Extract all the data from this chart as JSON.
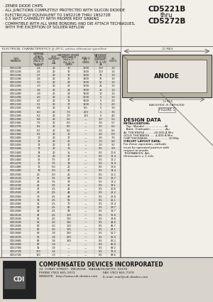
{
  "bg_color": "#f2efe9",
  "title_part1": "CD5221B",
  "title_thru": "thru",
  "title_part2": "CD5272B",
  "bullets": [
    "· ZENER DIODE CHIPS",
    "· ALL JUNCTIONS COMPLETELY PROTECTED WITH SILICON DIOXIDE",
    "· ELECTRICALLY EQUIVALENT TO 1N5221B THRU 1N5272B",
    "· 0.5 WATT CAPABILITY WITH PROPER HEAT SINKING",
    "· COMPATIBLE WITH ALL WIRE BONDING AND DIE ATTACH TECHNIQUES,",
    "  WITH THE EXCEPTION OF SOLDER REFLOW"
  ],
  "elec_char_title": "ELECTRICAL CHARACTERISTICS @ 25°C, unless otherwise specified",
  "table_rows": [
    [
      "CD5221B",
      "2.4",
      "20",
      "30",
      "1200",
      "100",
      "1.0"
    ],
    [
      "CD5222B",
      "2.5",
      "20",
      "30",
      "1200",
      "100",
      "1.0"
    ],
    [
      "CD5223B",
      "2.7",
      "20",
      "30",
      "1300",
      "75",
      "1.0"
    ],
    [
      "CD5224B",
      "2.8",
      "20",
      "30",
      "1400",
      "75",
      "1.0"
    ],
    [
      "CD5225B",
      "3.0",
      "20",
      "29",
      "1600",
      "50",
      "1.0"
    ],
    [
      "CD5226B",
      "3.3",
      "20",
      "28",
      "1600",
      "25",
      "1.0"
    ],
    [
      "CD5227B",
      "3.6",
      "20",
      "24",
      "1700",
      "15",
      "1.0"
    ],
    [
      "CD5228B",
      "3.9",
      "20",
      "23",
      "1900",
      "10",
      "1.0"
    ],
    [
      "CD5229B",
      "4.3",
      "20",
      "22",
      "2000",
      "5",
      "1.0"
    ],
    [
      "CD5230B",
      "4.7",
      "20",
      "19",
      "1900",
      "5",
      "2.0"
    ],
    [
      "CD5231B",
      "5.1",
      "20",
      "17",
      "1500",
      "5",
      "2.0"
    ],
    [
      "CD5232B",
      "5.6",
      "20",
      "11",
      "8.0",
      "5",
      "3.0"
    ],
    [
      "CD5233B",
      "6.0",
      "20",
      "7.0",
      "200",
      "5",
      "3.5"
    ],
    [
      "CD5234B",
      "6.2",
      "20",
      "7.0",
      "150",
      "5",
      "4.0"
    ],
    [
      "CD5235B",
      "6.8",
      "20",
      "5.0",
      "—",
      "3.0",
      "5.2"
    ],
    [
      "CD5236B",
      "7.5",
      "20",
      "6.0",
      "—",
      "3.0",
      "5.7"
    ],
    [
      "CD5237B",
      "8.2",
      "20",
      "8.0",
      "—",
      "3.0",
      "6.2"
    ],
    [
      "CD5238B",
      "8.7",
      "20",
      "8.0",
      "—",
      "3.0",
      "6.6"
    ],
    [
      "CD5239B",
      "9.1",
      "20",
      "10",
      "—",
      "3.0",
      "6.9"
    ],
    [
      "CD5240B",
      "10",
      "20",
      "17",
      "—",
      "3.0",
      "7.6"
    ],
    [
      "CD5241B",
      "11",
      "20",
      "22",
      "—",
      "1.0",
      "8.4"
    ],
    [
      "CD5242B",
      "12",
      "20",
      "30",
      "—",
      "1.0",
      "9.1"
    ],
    [
      "CD5243B",
      "13",
      "20",
      "13",
      "—",
      "0.5",
      "9.9"
    ],
    [
      "CD5244B",
      "14",
      "20",
      "15",
      "—",
      "0.5",
      "10.6"
    ],
    [
      "CD5245B",
      "15",
      "20",
      "16",
      "—",
      "0.5",
      "11.4"
    ],
    [
      "CD5246B",
      "16",
      "7.5",
      "17",
      "—",
      "0.5",
      "12.2"
    ],
    [
      "CD5247B",
      "17",
      "7.5",
      "19",
      "—",
      "0.5",
      "12.9"
    ],
    [
      "CD5248B",
      "18",
      "5.0",
      "21",
      "—",
      "0.5",
      "13.6"
    ],
    [
      "CD5249B",
      "19",
      "5.0",
      "23",
      "—",
      "0.5",
      "14.4"
    ],
    [
      "CD5250B",
      "20",
      "5.0",
      "25",
      "—",
      "0.5",
      "15.2"
    ],
    [
      "CD5251B",
      "22",
      "3.5",
      "29",
      "—",
      "0.5",
      "16.7"
    ],
    [
      "CD5252B",
      "24",
      "3.5",
      "33",
      "—",
      "0.5",
      "18.2"
    ],
    [
      "CD5253B",
      "25",
      "3.5",
      "35",
      "—",
      "0.5",
      "19.1"
    ],
    [
      "CD5254B",
      "27",
      "2.5",
      "41",
      "—",
      "0.5",
      "20.6"
    ],
    [
      "CD5255B",
      "28",
      "2.5",
      "44",
      "—",
      "0.5",
      "21.2"
    ],
    [
      "CD5256B",
      "30",
      "2.5",
      "49",
      "—",
      "0.5",
      "22.8"
    ],
    [
      "CD5257B",
      "33",
      "2.5",
      "58",
      "—",
      "0.5",
      "25.1"
    ],
    [
      "CD5258B",
      "36",
      "2.5",
      "70",
      "—",
      "0.5",
      "27.4"
    ],
    [
      "CD5259B",
      "39",
      "2.5",
      "80",
      "—",
      "0.5",
      "29.7"
    ],
    [
      "CD5260B",
      "43",
      "2.5",
      "93",
      "—",
      "0.5",
      "32.7"
    ],
    [
      "CD5261B",
      "47",
      "2.5",
      "105",
      "—",
      "0.5",
      "35.8"
    ],
    [
      "CD5262B",
      "51",
      "2.5",
      "125",
      "—",
      "0.5",
      "38.8"
    ],
    [
      "CD5263B",
      "56",
      "2.0",
      "135",
      "—",
      "0.5",
      "42.6"
    ],
    [
      "CD5264B",
      "60",
      "2.0",
      "150",
      "—",
      "0.5",
      "45.7"
    ],
    [
      "CD5265B",
      "62",
      "2.0",
      "185",
      "—",
      "0.5",
      "47.1"
    ],
    [
      "CD5266B",
      "68",
      "1.8",
      "230",
      "—",
      "0.5",
      "51.7"
    ],
    [
      "CD5267B",
      "75",
      "1.8",
      "270",
      "—",
      "0.5",
      "56.0"
    ],
    [
      "CD5268B",
      "82",
      "1.8",
      "330",
      "—",
      "0.5",
      "62.2"
    ],
    [
      "CD5269B",
      "87",
      "1.8",
      "—",
      "—",
      "0.5",
      "66.0"
    ],
    [
      "CD5270B",
      "91",
      "1.8",
      "—",
      "—",
      "0.5",
      "69.2"
    ],
    [
      "CD5271B",
      "100",
      "1.4",
      "—",
      "—",
      "0.5",
      "76.0"
    ],
    [
      "CD5272B",
      "110",
      "1.3",
      "—",
      "—",
      "0.5",
      "83.6"
    ]
  ],
  "figure_label": "ANODE",
  "figure_note": "BACKSIDE IS CATHODE",
  "figure_title": "FIGURE 1",
  "dim_top": ".21 MILS",
  "dim_inner": ".19 MILS",
  "dim_side": ".21 MILS",
  "design_data_title": "DESIGN DATA",
  "dd_lines": [
    [
      "METALLIZATION:",
      true
    ],
    [
      "   Top  (Anode).......................Al",
      false
    ],
    [
      "   Back  (Cathode)..................Au",
      false
    ],
    [
      "AL THICKNESS ..........20,000 Å Min.",
      false
    ],
    [
      "GOLD THICKNESS ......4,000 Å Min.",
      false
    ],
    [
      "CHIP THICKNESS .......................10 Mils",
      false
    ],
    [
      "CIRCUIT LAYOUT DATA:",
      true
    ],
    [
      "For Zener operation, cathode",
      false
    ],
    [
      "must be operated positive with",
      false
    ],
    [
      "respect to anode.",
      false
    ],
    [
      "TOLERANCES: ALL",
      false
    ],
    [
      "Dimensions ± 2 mils",
      false
    ]
  ],
  "company_name": "COMPENSATED DEVICES INCORPORATED",
  "company_address": "22  COREY STREET,  MELROSE,  MASSACHUSETTS  02176",
  "company_phone": "PHONE (781) 665-1071",
  "company_fax": "FAX (781) 665-7379",
  "company_website": "WEBSITE:  http://www.cdi-diodes.com",
  "company_email": "E-mail: mail@cdi-diodes.com"
}
